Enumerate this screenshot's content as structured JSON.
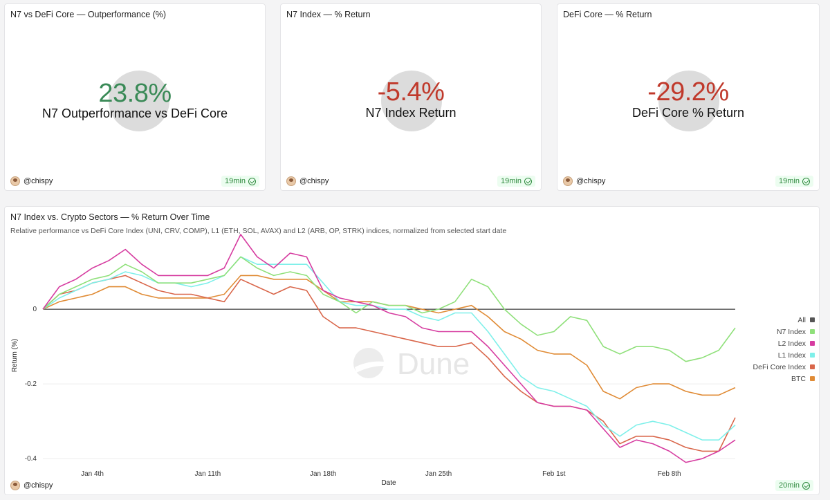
{
  "counters": [
    {
      "title": "N7 vs DeFi Core — Outperformance (%)",
      "value": "23.8%",
      "label": "N7 Outperformance vs DeFi Core",
      "color": "#3a8a57",
      "user": "@chispy",
      "freshness": "19min"
    },
    {
      "title": "N7 Index — % Return",
      "value": "-5.4%",
      "label": "N7 Index Return",
      "color": "#c0392b",
      "user": "@chispy",
      "freshness": "19min"
    },
    {
      "title": "DeFi Core — % Return",
      "value": "-29.2%",
      "label": "DeFi Core % Return",
      "color": "#c0392b",
      "user": "@chispy",
      "freshness": "19min"
    }
  ],
  "chart_panel": {
    "title": "N7 Index vs. Crypto Sectors — % Return Over Time",
    "subtitle": "Relative performance vs DeFi Core Index (UNI, CRV, COMP), L1 (ETH, SOL, AVAX) and L2 (ARB, OP, STRK) indices, normalized from selected start date",
    "user": "@chispy",
    "freshness": "20min",
    "watermark": "Dune"
  },
  "chart_data": {
    "type": "line",
    "title": "N7 Index vs. Crypto Sectors — % Return Over Time",
    "xlabel": "Date",
    "ylabel": "Return (%)",
    "ylim": [
      -0.42,
      0.2
    ],
    "yticks": [
      0,
      -0.2,
      -0.4
    ],
    "ytick_labels": [
      "0",
      "-0.2",
      "-0.4"
    ],
    "x_ticks": [
      {
        "x": 3,
        "label": "Jan 4th"
      },
      {
        "x": 10,
        "label": "Jan 11th"
      },
      {
        "x": 17,
        "label": "Jan 18th"
      },
      {
        "x": 24,
        "label": "Jan 25th"
      },
      {
        "x": 31,
        "label": "Feb 1st"
      },
      {
        "x": 38,
        "label": "Feb 8th"
      }
    ],
    "legend_all": "All",
    "legend_all_color": "#555555",
    "series": [
      {
        "name": "N7 Index",
        "color": "#8fe07a",
        "values": [
          0,
          0.04,
          0.06,
          0.08,
          0.09,
          0.12,
          0.1,
          0.07,
          0.07,
          0.07,
          0.08,
          0.09,
          0.14,
          0.11,
          0.09,
          0.1,
          0.09,
          0.04,
          0.02,
          -0.01,
          0.02,
          0.01,
          0.01,
          -0.01,
          0.0,
          0.02,
          0.08,
          0.06,
          0.0,
          -0.04,
          -0.07,
          -0.06,
          -0.02,
          -0.03,
          -0.1,
          -0.12,
          -0.1,
          -0.1,
          -0.11,
          -0.14,
          -0.13,
          -0.11,
          -0.05
        ]
      },
      {
        "name": "L2 Index",
        "color": "#d63ca0",
        "values": [
          0,
          0.06,
          0.08,
          0.11,
          0.13,
          0.16,
          0.12,
          0.09,
          0.09,
          0.09,
          0.09,
          0.11,
          0.2,
          0.14,
          0.11,
          0.15,
          0.14,
          0.05,
          0.03,
          0.02,
          0.01,
          -0.01,
          -0.02,
          -0.05,
          -0.06,
          -0.06,
          -0.06,
          -0.1,
          -0.15,
          -0.2,
          -0.25,
          -0.26,
          -0.26,
          -0.27,
          -0.32,
          -0.37,
          -0.35,
          -0.36,
          -0.38,
          -0.41,
          -0.4,
          -0.38,
          -0.35
        ]
      },
      {
        "name": "L1 Index",
        "color": "#7ff0ea",
        "values": [
          0,
          0.03,
          0.05,
          0.07,
          0.08,
          0.1,
          0.09,
          0.07,
          0.07,
          0.06,
          0.07,
          0.09,
          0.14,
          0.12,
          0.12,
          0.12,
          0.12,
          0.07,
          0.02,
          0.01,
          0.01,
          0.0,
          0.0,
          -0.02,
          -0.03,
          -0.01,
          -0.01,
          -0.06,
          -0.12,
          -0.18,
          -0.21,
          -0.22,
          -0.24,
          -0.26,
          -0.31,
          -0.34,
          -0.31,
          -0.3,
          -0.31,
          -0.33,
          -0.35,
          -0.35,
          -0.31
        ]
      },
      {
        "name": "DeFi Core Index",
        "color": "#d9664a",
        "values": [
          0,
          0.04,
          0.05,
          0.07,
          0.08,
          0.09,
          0.07,
          0.05,
          0.04,
          0.04,
          0.03,
          0.02,
          0.08,
          0.06,
          0.04,
          0.06,
          0.05,
          -0.02,
          -0.05,
          -0.05,
          -0.06,
          -0.07,
          -0.08,
          -0.09,
          -0.1,
          -0.1,
          -0.09,
          -0.13,
          -0.18,
          -0.22,
          -0.25,
          -0.26,
          -0.26,
          -0.27,
          -0.3,
          -0.36,
          -0.34,
          -0.34,
          -0.35,
          -0.37,
          -0.38,
          -0.38,
          -0.29
        ]
      },
      {
        "name": "BTC",
        "color": "#e08b35",
        "values": [
          0,
          0.02,
          0.03,
          0.04,
          0.06,
          0.06,
          0.04,
          0.03,
          0.03,
          0.03,
          0.03,
          0.04,
          0.09,
          0.09,
          0.08,
          0.08,
          0.08,
          0.05,
          0.02,
          0.02,
          0.02,
          0.01,
          0.01,
          0.0,
          -0.01,
          0.0,
          0.01,
          -0.02,
          -0.06,
          -0.08,
          -0.11,
          -0.12,
          -0.12,
          -0.15,
          -0.22,
          -0.24,
          -0.21,
          -0.2,
          -0.2,
          -0.22,
          -0.23,
          -0.23,
          -0.21
        ]
      }
    ]
  }
}
